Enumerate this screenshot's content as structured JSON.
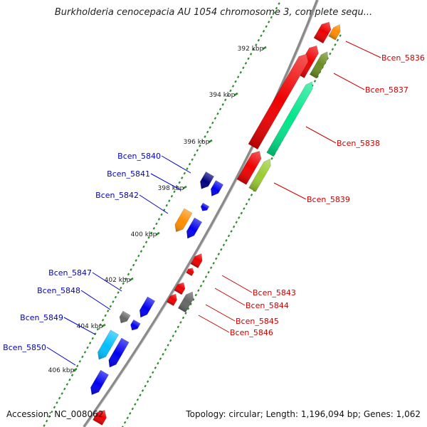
{
  "title": "Burkholderia cenocepacia AU 1054 chromosome 3, complete sequ...",
  "footer": {
    "accession": "Accession: NC_008062",
    "summary": "Topology: circular; Length: 1,196,094 bp; Genes: 1,062"
  },
  "colors": {
    "backbone": "#8a8a8a",
    "tick": "#2e8b2e",
    "forward_label": "#cc0000",
    "reverse_label": "#0000cc"
  },
  "scale_labels": [
    "392 kbp",
    "394 kbp",
    "396 kbp",
    "398 kbp",
    "400 kbp",
    "402 kbp",
    "404 kbp",
    "406 kbp"
  ],
  "genes_forward": [
    {
      "name": "Bcen_5836",
      "color": "#ff8c00"
    },
    {
      "name": "Bcen_5837",
      "color": "#6b8e23"
    },
    {
      "name": "Bcen_5838",
      "color": "#00e68a"
    },
    {
      "name": "Bcen_5839",
      "color": "#9acd32"
    },
    {
      "name": "Bcen_5843",
      "color": "#ee0000"
    },
    {
      "name": "Bcen_5844",
      "color": "#ee0000"
    },
    {
      "name": "Bcen_5845",
      "color": "#ee0000"
    },
    {
      "name": "Bcen_5846",
      "color": "#666666"
    }
  ],
  "genes_reverse": [
    {
      "name": "Bcen_5840",
      "color": "#000080"
    },
    {
      "name": "Bcen_5841",
      "color": "#0000ee"
    },
    {
      "name": "Bcen_5842",
      "color": "#ff8c00"
    },
    {
      "name": "Bcen_5847",
      "color": "#666666"
    },
    {
      "name": "Bcen_5848",
      "color": "#0000ee"
    },
    {
      "name": "Bcen_5849",
      "color": "#00bfff"
    },
    {
      "name": "Bcen_5850",
      "color": "#0000ee"
    }
  ],
  "icons": {
    "gene_forward": "arrow-right-block",
    "gene_reverse": "arrow-left-block"
  }
}
